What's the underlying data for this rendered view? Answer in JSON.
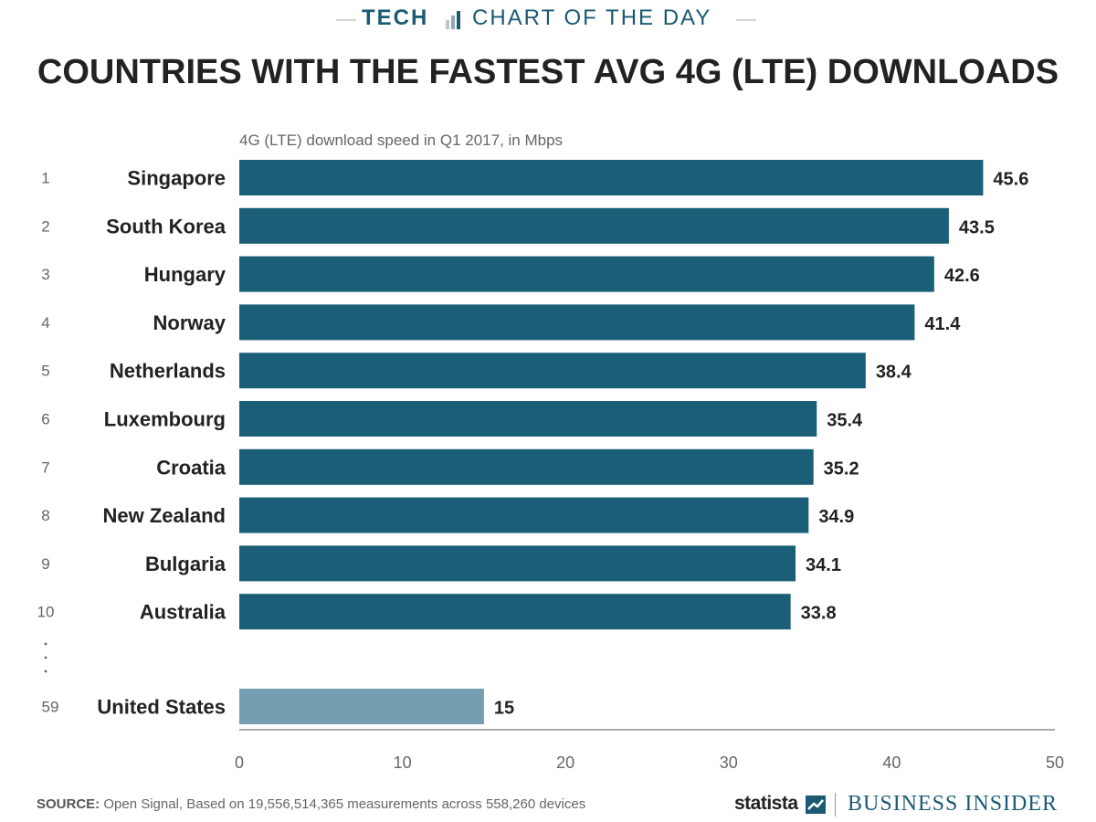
{
  "banner": {
    "section": "TECH",
    "label": "CHART OF THE DAY"
  },
  "page_title": "COUNTRIES WITH THE FASTEST AVG 4G (LTE) DOWNLOADS",
  "chart_data": {
    "type": "bar",
    "orientation": "horizontal",
    "subtitle": "4G (LTE) download speed in Q1 2017, in Mbps",
    "ranks": [
      "1",
      "2",
      "3",
      "4",
      "5",
      "6",
      "7",
      "8",
      "9",
      "10"
    ],
    "categories": [
      "Singapore",
      "South Korea",
      "Hungary",
      "Norway",
      "Netherlands",
      "Luxembourg",
      "Croatia",
      "New Zealand",
      "Bulgaria",
      "Australia"
    ],
    "values": [
      45.6,
      43.5,
      42.6,
      41.4,
      38.4,
      35.4,
      35.2,
      34.9,
      34.1,
      33.8
    ],
    "value_labels": [
      "45.6",
      "43.5",
      "42.6",
      "41.4",
      "38.4",
      "35.4",
      "35.2",
      "34.9",
      "34.1",
      "33.8"
    ],
    "highlight": {
      "rank": "59",
      "category": "United States",
      "value": 15,
      "value_label": "15"
    },
    "xlim": [
      0,
      50
    ],
    "xticks": [
      0,
      10,
      20,
      30,
      40,
      50
    ],
    "colors": {
      "bar": "#1b5e78",
      "highlight_bar": "#759fb0",
      "axis": "#aaaaaa"
    }
  },
  "source": {
    "label": "SOURCE:",
    "text": " Open Signal, Based on 19,556,514,365 measurements across 558,260 devices"
  },
  "logos": {
    "statista": "statista",
    "publisher": "BUSINESS INSIDER"
  }
}
